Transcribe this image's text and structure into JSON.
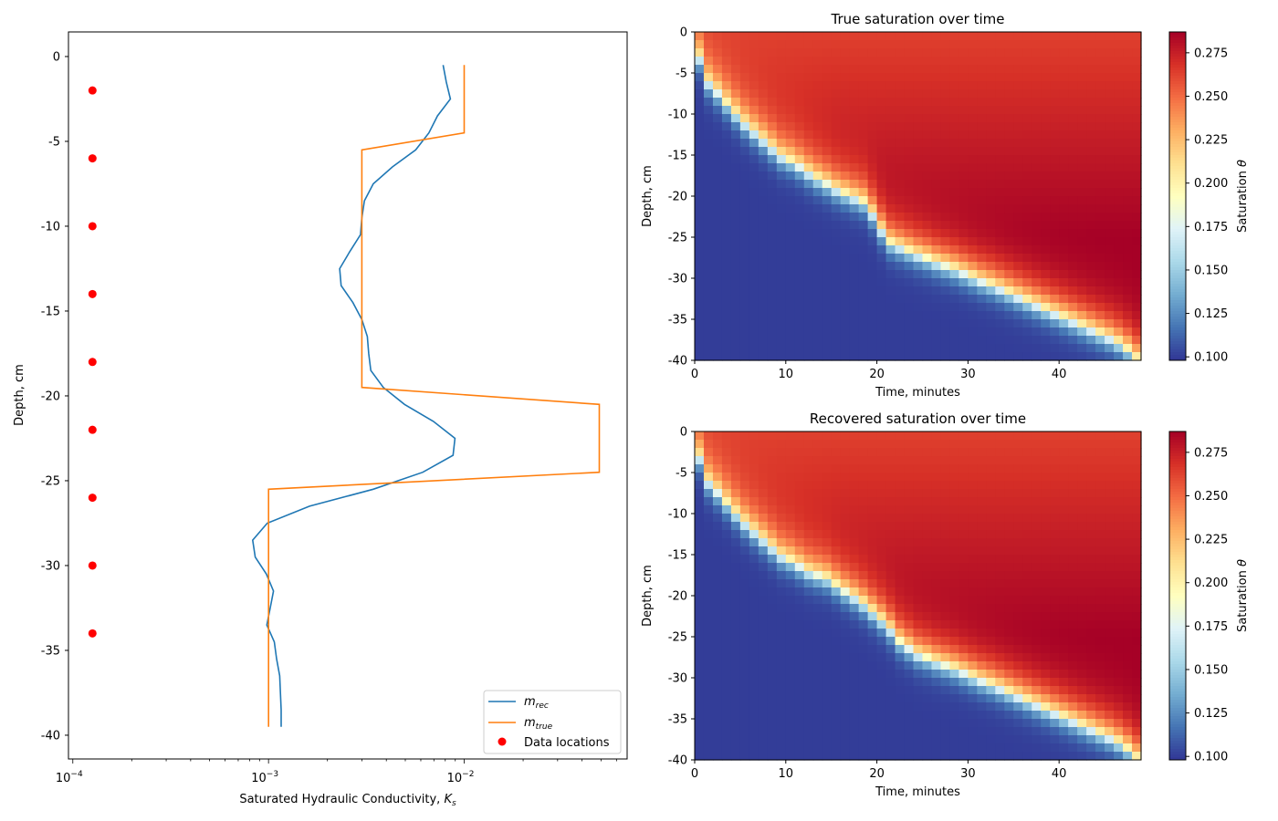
{
  "chart_data": [
    {
      "type": "line",
      "xlabel": "Saturated Hydraulic Conductivity, ",
      "xlabel_math": {
        "symbol": "K",
        "subscript": "s"
      },
      "ylabel": "Depth, cm",
      "xscale": "log",
      "xlim": [
        9.5e-05,
        0.068
      ],
      "ylim": [
        -41.4,
        1.45
      ],
      "xticks": [
        {
          "base": "10",
          "exp": "−4",
          "value": 0.0001
        },
        {
          "base": "10",
          "exp": "−3",
          "value": 0.001
        },
        {
          "base": "10",
          "exp": "−2",
          "value": 0.01
        }
      ],
      "yticks": [
        0,
        -5,
        -10,
        -15,
        -20,
        -25,
        -30,
        -35,
        -40
      ],
      "grid": false,
      "legend_placement": "lower-right",
      "depth": [
        -0.5,
        -1.5,
        -2.5,
        -3.5,
        -4.5,
        -5.5,
        -6.5,
        -7.5,
        -8.5,
        -9.5,
        -10.5,
        -11.5,
        -12.5,
        -13.5,
        -14.5,
        -15.5,
        -16.5,
        -17.5,
        -18.5,
        -19.5,
        -20.5,
        -21.5,
        -22.5,
        -23.5,
        -24.5,
        -25.5,
        -26.5,
        -27.5,
        -28.5,
        -29.5,
        -30.5,
        -31.5,
        -32.5,
        -33.5,
        -34.5,
        -35.5,
        -36.5,
        -37.5,
        -38.5,
        -39.5
      ],
      "series": [
        {
          "name": "m_rec",
          "legend": {
            "symbol": "m",
            "subscript": "rec"
          },
          "color": "#1f77b4",
          "values": [
            0.0078,
            0.0081,
            0.0085,
            0.0073,
            0.0066,
            0.00565,
            0.0043,
            0.00343,
            0.00309,
            0.003,
            0.00295,
            0.0026,
            0.00231,
            0.00235,
            0.0027,
            0.003,
            0.0032,
            0.00325,
            0.00333,
            0.00386,
            0.00495,
            0.00695,
            0.00897,
            0.00877,
            0.00614,
            0.00343,
            0.00162,
            0.000986,
            0.00083,
            0.000855,
            0.000975,
            0.00106,
            0.00102,
            0.00098,
            0.00107,
            0.0011,
            0.00114,
            0.00115,
            0.00116,
            0.00116
          ]
        },
        {
          "name": "m_true",
          "legend": {
            "symbol": "m",
            "subscript": "true"
          },
          "color": "#ff7f0e",
          "values": [
            0.01,
            0.01,
            0.01,
            0.01,
            0.01,
            0.003,
            0.003,
            0.003,
            0.003,
            0.003,
            0.003,
            0.003,
            0.003,
            0.003,
            0.003,
            0.003,
            0.003,
            0.003,
            0.003,
            0.003,
            0.049,
            0.049,
            0.049,
            0.049,
            0.049,
            0.001,
            0.001,
            0.001,
            0.001,
            0.001,
            0.001,
            0.001,
            0.001,
            0.001,
            0.001,
            0.001,
            0.001,
            0.001,
            0.001,
            0.001
          ]
        }
      ],
      "scatter": {
        "name": "Data locations",
        "color": "#ff0000",
        "x": [
          0.000126,
          0.000126,
          0.000126,
          0.000126,
          0.000126,
          0.000126,
          0.000126,
          0.000126,
          0.000126
        ],
        "y": [
          -2,
          -6,
          -10,
          -14,
          -18,
          -22,
          -26,
          -30,
          -34
        ]
      }
    },
    {
      "type": "heatmap",
      "title": "True saturation over time",
      "xlabel": "Time, minutes",
      "ylabel": "Depth, cm",
      "xlim": [
        0,
        49
      ],
      "ylim": [
        -40,
        0
      ],
      "xticks": [
        0,
        10,
        20,
        30,
        40
      ],
      "yticks": [
        0,
        -5,
        -10,
        -15,
        -20,
        -25,
        -30,
        -35,
        -40
      ],
      "colormap": "RdYlBu_r",
      "colorbar": {
        "label": "Saturation ",
        "label_symbol": "θ",
        "range": [
          0.098,
          0.287
        ],
        "ticks": [
          "0.100",
          "0.125",
          "0.150",
          "0.175",
          "0.200",
          "0.225",
          "0.250",
          "0.275"
        ]
      },
      "front_depth_cm": [
        3,
        6,
        7.2,
        8.5,
        9.8,
        11,
        12,
        13,
        14,
        15,
        15.5,
        16.2,
        17,
        17.7,
        18.3,
        19,
        19.5,
        20,
        20.5,
        22,
        24,
        25.5,
        26,
        26.5,
        27,
        27.4,
        27.9,
        28.3,
        28.7,
        29.2,
        29.7,
        30.2,
        30.6,
        31.1,
        31.6,
        32.1,
        32.6,
        33.1,
        33.6,
        34.1,
        34.6,
        35.1,
        35.6,
        36.1,
        36.6,
        37.1,
        37.7,
        38.5,
        39.6
      ]
    },
    {
      "type": "heatmap",
      "title": "Recovered saturation over time",
      "xlabel": "Time, minutes",
      "ylabel": "Depth, cm",
      "xlim": [
        0,
        49
      ],
      "ylim": [
        -40,
        0
      ],
      "xticks": [
        0,
        10,
        20,
        30,
        40
      ],
      "yticks": [
        0,
        -5,
        -10,
        -15,
        -20,
        -25,
        -30,
        -35,
        -40
      ],
      "colormap": "RdYlBu_r",
      "colorbar": {
        "label": "Saturation ",
        "label_symbol": "θ",
        "range": [
          0.098,
          0.287
        ],
        "ticks": [
          "0.100",
          "0.125",
          "0.150",
          "0.175",
          "0.200",
          "0.225",
          "0.250",
          "0.275"
        ]
      },
      "front_depth_cm": [
        3,
        6,
        7.2,
        8.5,
        9.8,
        11,
        12,
        13,
        14,
        15,
        15.5,
        16.2,
        16.9,
        17.3,
        17.7,
        18.5,
        19.3,
        20,
        20.8,
        21.8,
        22.8,
        24,
        25.4,
        26.2,
        27,
        27.4,
        27.9,
        28.3,
        28.7,
        29.2,
        29.7,
        30.2,
        30.6,
        31.1,
        31.6,
        32.1,
        32.6,
        33.1,
        33.6,
        34.1,
        34.6,
        35.1,
        35.6,
        36.1,
        36.6,
        37.1,
        37.7,
        38.5,
        39.6
      ]
    }
  ]
}
